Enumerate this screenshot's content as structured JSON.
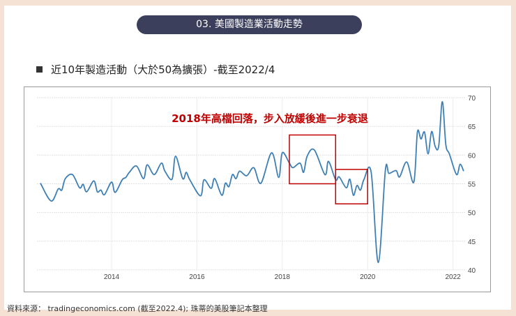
{
  "header": {
    "title": "03. 美國製造業活動走勢"
  },
  "subtitle": "近10年製造活動（大於50為擴張）-截至2022/4",
  "footer": "資料來源： tradingeconomics.com (截至2022.4); 珠蒂的美股筆記本整理",
  "colors": {
    "line": "#3d7fb5",
    "annotation": "#c00000",
    "header_bg": "#3b3f5c",
    "page_bg": "#f6e1d5"
  },
  "chart_data": {
    "type": "line",
    "title": "",
    "xlabel": "",
    "ylabel": "",
    "ylim": [
      40,
      70
    ],
    "yticks": [
      "40",
      "45",
      "50",
      "55",
      "60",
      "65",
      "70"
    ],
    "xticks": [
      "2014",
      "2016",
      "2018",
      "2020",
      "2022"
    ],
    "y_axis_side": "right",
    "grid": true,
    "annotation": "2018年高檔回落，步入放緩後進一步衰退",
    "highlight_ranges": [
      {
        "from": "2018-03",
        "to": "2019-04",
        "ymin": 55,
        "ymax": 63.5
      },
      {
        "from": "2019-04",
        "to": "2020-01",
        "ymin": 51.5,
        "ymax": 57.5
      }
    ],
    "series": [
      {
        "points": [
          [
            "2012-05",
            55.1
          ],
          [
            "2012-08",
            52.0
          ],
          [
            "2012-10",
            54.1
          ],
          [
            "2012-11",
            53.9
          ],
          [
            "2012-12",
            55.9
          ],
          [
            "2013-02",
            56.6
          ],
          [
            "2013-04",
            54.3
          ],
          [
            "2013-05",
            54.9
          ],
          [
            "2013-06",
            53.6
          ],
          [
            "2013-08",
            55.5
          ],
          [
            "2013-09",
            53.6
          ],
          [
            "2013-10",
            53.9
          ],
          [
            "2013-11",
            53.1
          ],
          [
            "2014-01",
            55.3
          ],
          [
            "2014-02",
            53.5
          ],
          [
            "2014-04",
            55.7
          ],
          [
            "2014-05",
            56.1
          ],
          [
            "2014-06",
            57.0
          ],
          [
            "2014-08",
            58.1
          ],
          [
            "2014-10",
            55.9
          ],
          [
            "2014-11",
            58.3
          ],
          [
            "2015-01",
            56.6
          ],
          [
            "2015-03",
            58.6
          ],
          [
            "2015-04",
            57.2
          ],
          [
            "2015-06",
            55.8
          ],
          [
            "2015-07",
            59.8
          ],
          [
            "2015-09",
            55.9
          ],
          [
            "2015-10",
            57.0
          ],
          [
            "2015-11",
            55.7
          ],
          [
            "2016-02",
            52.9
          ],
          [
            "2016-03",
            55.7
          ],
          [
            "2016-05",
            54.2
          ],
          [
            "2016-06",
            55.9
          ],
          [
            "2016-08",
            53.0
          ],
          [
            "2016-09",
            55.1
          ],
          [
            "2016-10",
            54.5
          ],
          [
            "2016-11",
            56.6
          ],
          [
            "2016-12",
            55.9
          ],
          [
            "2017-01",
            57.2
          ],
          [
            "2017-03",
            56.4
          ],
          [
            "2017-05",
            57.8
          ],
          [
            "2017-07",
            55.1
          ],
          [
            "2017-10",
            60.4
          ],
          [
            "2017-12",
            56.1
          ],
          [
            "2018-01",
            60.4
          ],
          [
            "2018-03",
            58.6
          ],
          [
            "2018-04",
            57.8
          ],
          [
            "2018-06",
            58.6
          ],
          [
            "2018-07",
            57.0
          ],
          [
            "2018-08",
            59.8
          ],
          [
            "2018-10",
            60.9
          ],
          [
            "2019-01",
            56.6
          ],
          [
            "2019-02",
            58.9
          ],
          [
            "2019-04",
            55.7
          ],
          [
            "2019-05",
            56.2
          ],
          [
            "2019-07",
            54.3
          ],
          [
            "2019-08",
            55.8
          ],
          [
            "2019-09",
            53.0
          ],
          [
            "2019-10",
            54.7
          ],
          [
            "2019-11",
            53.9
          ],
          [
            "2019-12",
            55.8
          ],
          [
            "2020-02",
            57.0
          ],
          [
            "2020-04",
            41.3
          ],
          [
            "2020-06",
            57.4
          ],
          [
            "2020-07",
            56.8
          ],
          [
            "2020-09",
            57.3
          ],
          [
            "2020-10",
            56.2
          ],
          [
            "2020-12",
            58.8
          ],
          [
            "2021-02",
            55.3
          ],
          [
            "2021-03",
            64.0
          ],
          [
            "2021-04",
            62.8
          ],
          [
            "2021-05",
            64.0
          ],
          [
            "2021-06",
            60.2
          ],
          [
            "2021-07",
            64.1
          ],
          [
            "2021-08",
            61.5
          ],
          [
            "2021-09",
            61.6
          ],
          [
            "2021-10",
            69.3
          ],
          [
            "2021-11",
            61.8
          ],
          [
            "2021-12",
            60.2
          ],
          [
            "2022-02",
            56.6
          ],
          [
            "2022-03",
            58.4
          ],
          [
            "2022-04",
            57.2
          ]
        ]
      }
    ]
  }
}
